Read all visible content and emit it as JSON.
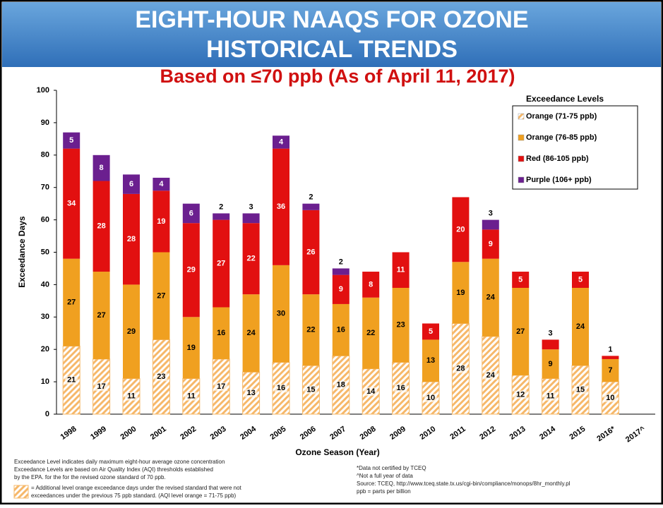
{
  "chart_data": {
    "type": "stacked_bar",
    "title": [
      "EIGHT-HOUR NAAQS FOR OZONE",
      "HISTORICAL TRENDS"
    ],
    "subtitle": "Based on ≤70 ppb (As of April 11, 2017)",
    "y_label": "Exceedance Days",
    "x_label": "Ozone Season (Year)",
    "legend_title": "Exceedance Levels",
    "legend_position": "upper right",
    "categories": [
      "1998",
      "1999",
      "2000",
      "2001",
      "2002",
      "2003",
      "2004",
      "2005",
      "2006",
      "2007",
      "2008",
      "2009",
      "2010",
      "2011",
      "2012",
      "2013",
      "2014",
      "2015",
      "2016*",
      "2017^"
    ],
    "series": [
      {
        "name": "Orange (71-75 ppb)",
        "color": "#f6b86a",
        "pattern": "hatch",
        "values": [
          21,
          17,
          11,
          23,
          11,
          17,
          13,
          16,
          15,
          18,
          14,
          16,
          10,
          28,
          24,
          12,
          11,
          15,
          10,
          null
        ]
      },
      {
        "name": "Orange (76-85 ppb)",
        "color": "#f0a020",
        "values": [
          27,
          27,
          29,
          27,
          19,
          16,
          24,
          30,
          22,
          16,
          22,
          23,
          13,
          19,
          24,
          27,
          9,
          24,
          7,
          null
        ]
      },
      {
        "name": "Red (86-105 ppb)",
        "color": "#e21010",
        "values": [
          34,
          28,
          28,
          19,
          29,
          27,
          22,
          36,
          26,
          9,
          8,
          11,
          5,
          20,
          9,
          5,
          3,
          5,
          1,
          null
        ]
      },
      {
        "name": "Purple (106+ ppb)",
        "color": "#6b1f8f",
        "values": [
          5,
          8,
          6,
          4,
          6,
          2,
          3,
          4,
          2,
          2,
          null,
          null,
          null,
          null,
          3,
          null,
          null,
          null,
          null,
          null
        ]
      }
    ],
    "ylim": [
      0,
      100
    ],
    "yticks": [
      0,
      10,
      20,
      30,
      40,
      50,
      60,
      70,
      80,
      90,
      100
    ]
  },
  "footnotes": {
    "left": [
      "Exceedance Level indicates daily maximum eight-hour average ozone concentration",
      "Exceedance Levels are based on Air Quality Index (AQI) thresholds established",
      "by the EPA. for the for the revised ozone standard of 70 ppb."
    ],
    "hatch_note": [
      "= Additional level orange exceedance days under the revised standard that were not",
      "exceedances under the previous 75 ppb standard. (AQI level orange = 71-75 ppb)"
    ],
    "right": [
      "*Data not certified by TCEQ",
      "^Not a full year of data",
      "Source: TCEQ, http://www.tceq.state.tx.us/cgi-bin/compliance/monops/8hr_monthly.pl",
      "ppb = parts per billion"
    ]
  }
}
